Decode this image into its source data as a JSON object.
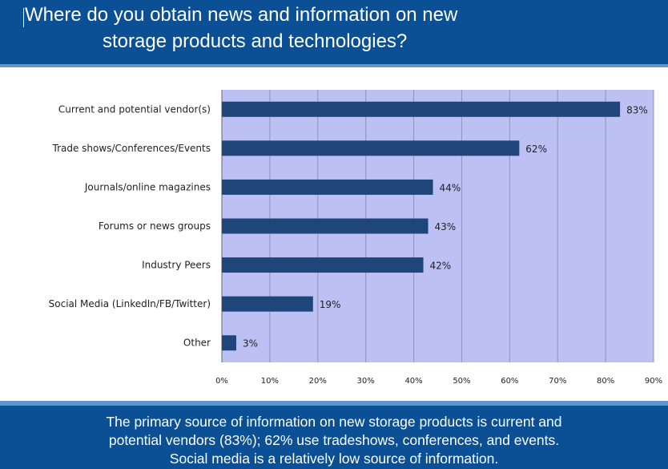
{
  "header": {
    "title_line1": "Where do you obtain news and information on new",
    "title_line2": "storage products and technologies?"
  },
  "colors": {
    "header_bg": "#0b4f94",
    "plot_bg": "#bcc0f2",
    "bar": "#1f467b"
  },
  "chart_data": {
    "type": "bar",
    "orientation": "horizontal",
    "categories": [
      "Current and potential vendor(s)",
      "Trade shows/Conferences/Events",
      "Journals/online magazines",
      "Forums or news groups",
      "Industry Peers",
      "Social Media (LinkedIn/FB/Twitter)",
      "Other"
    ],
    "values": [
      83,
      62,
      44,
      43,
      42,
      19,
      3
    ],
    "value_labels": [
      "83%",
      "62%",
      "44%",
      "43%",
      "42%",
      "19%",
      "3%"
    ],
    "xlim": [
      0,
      90
    ],
    "xticks": [
      0,
      10,
      20,
      30,
      40,
      50,
      60,
      70,
      80,
      90
    ],
    "xtick_labels": [
      "0%",
      "10%",
      "20%",
      "30%",
      "40%",
      "50%",
      "60%",
      "70%",
      "80%",
      "90%"
    ],
    "grid": true,
    "legend": "none"
  },
  "footer": {
    "caption_line1": "The primary source of information on new storage products is current and",
    "caption_line2": "potential vendors (83%); 62% use tradeshows, conferences, and events.",
    "caption_line3": "Social media is a relatively low source of information."
  }
}
